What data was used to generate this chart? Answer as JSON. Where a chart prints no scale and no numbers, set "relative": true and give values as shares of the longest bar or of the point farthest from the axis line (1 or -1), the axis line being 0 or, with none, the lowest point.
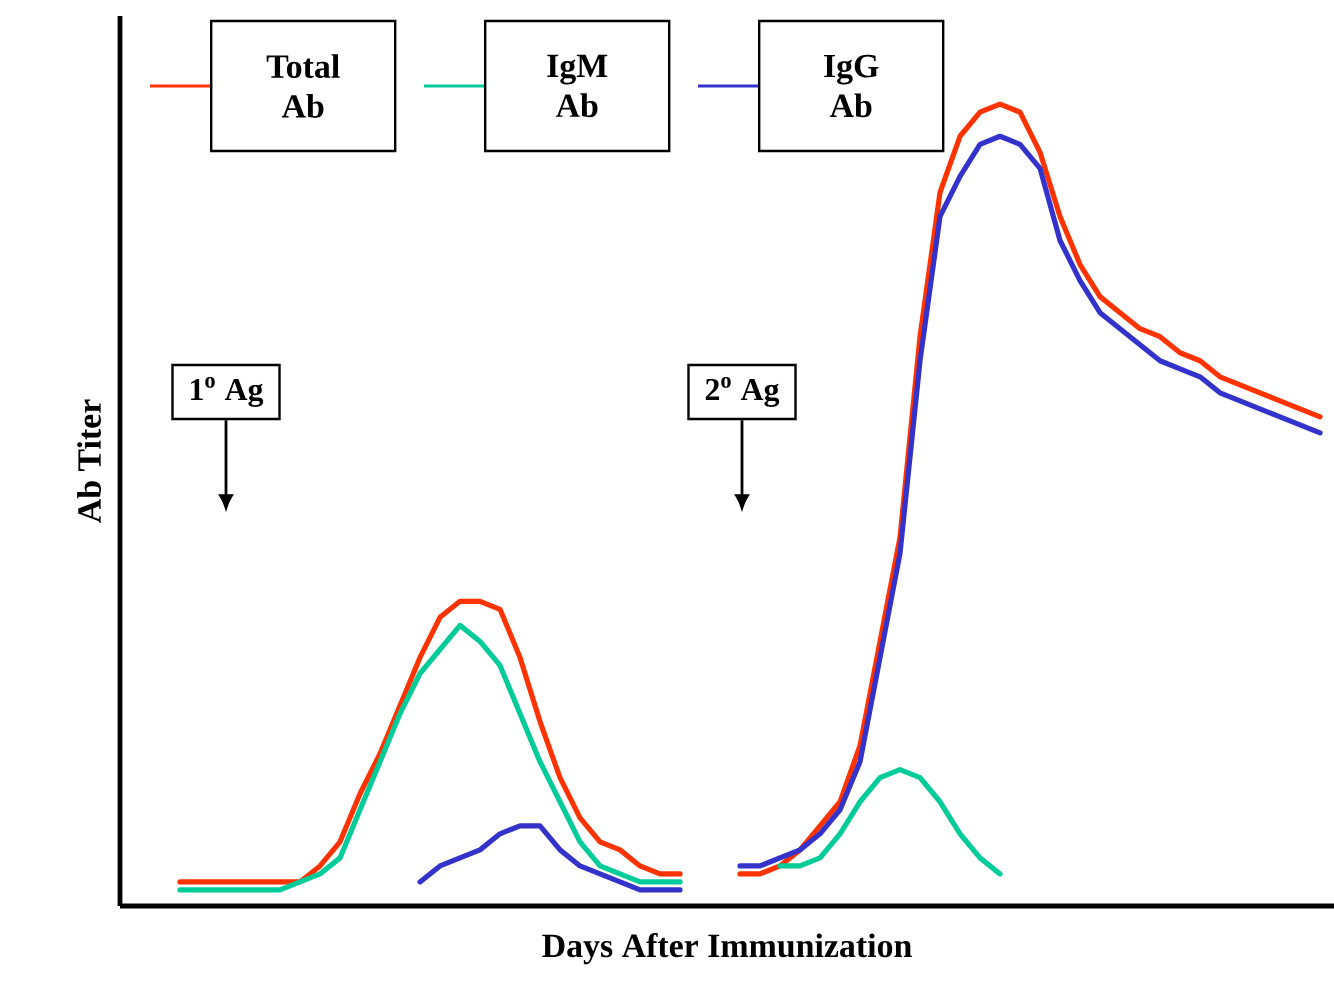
{
  "chart_data": {
    "type": "line",
    "xlabel": "Days After Immunization",
    "ylabel": "Ab Titer",
    "relative": true,
    "legend": "top left",
    "marker": "none",
    "line_style": "solid",
    "grid": false,
    "annotations": [
      "1$^{o}$ Ag",
      "2$^{o}$ Ag"
    ],
    "categories": [
      null,
      null,
      null,
      null,
      null,
      null,
      null,
      null,
      null,
      null,
      null,
      null,
      null,
      null,
      null,
      null,
      null,
      null,
      null,
      null,
      null,
      null,
      null,
      null,
      null,
      null,
      null,
      null,
      null,
      null,
      null,
      null,
      null,
      null,
      null,
      null,
      null,
      null,
      null,
      null,
      null,
      null,
      null,
      null,
      null,
      null,
      null,
      null,
      null,
      null,
      null,
      null,
      null,
      null,
      null,
      null,
      null,
      null
    ],
    "series": [
      {
        "name": "Total Ab",
        "color": "#ff3300",
        "values": [
          0.03,
          0.03,
          0.03,
          0.03,
          0.03,
          0.03,
          0.03,
          0.05,
          0.08,
          0.14,
          0.19,
          0.25,
          0.31,
          0.36,
          0.38,
          0.38,
          0.37,
          0.31,
          0.23,
          0.16,
          0.11,
          0.08,
          0.07,
          0.05,
          0.04,
          0.04,
          null,
          null,
          null,
          null,
          null,
          null,
          null,
          null,
          null,
          null,
          null,
          null,
          null,
          null,
          null,
          null,
          null,
          null,
          null,
          null,
          null,
          null,
          null,
          null,
          null,
          null,
          null,
          null,
          null,
          null,
          null,
          null
        ]
      },
      {
        "name": "IgM Ab",
        "color": "#00cc99",
        "values": [
          0.02,
          0.02,
          0.02,
          0.02,
          0.02,
          0.02,
          0.03,
          0.04,
          0.06,
          0.12,
          0.18,
          0.24,
          0.29,
          0.32,
          0.35,
          0.33,
          0.3,
          0.24,
          0.18,
          0.13,
          0.08,
          0.05,
          0.04,
          0.03,
          0.03,
          0.03,
          null,
          null,
          null,
          null,
          null,
          null,
          null,
          null,
          null,
          null,
          null,
          null,
          null,
          null,
          null,
          null,
          null,
          null,
          null,
          null,
          null,
          null,
          null,
          null,
          null,
          null,
          null,
          null,
          null,
          null,
          null,
          null
        ]
      },
      {
        "name": "IgG Ab",
        "color": "#3333cc",
        "values": [
          null,
          null,
          null,
          null,
          null,
          null,
          null,
          null,
          null,
          null,
          null,
          null,
          0.03,
          0.05,
          0.06,
          0.07,
          0.09,
          0.1,
          0.1,
          0.07,
          0.05,
          0.04,
          0.03,
          0.02,
          0.02,
          0.02,
          null,
          null,
          null,
          null,
          null,
          null,
          null,
          null,
          null,
          null,
          null,
          null,
          null,
          null,
          null,
          null,
          null,
          null,
          null,
          null,
          null,
          null,
          null,
          null,
          null,
          null,
          null,
          null,
          null,
          null,
          null,
          null
        ]
      },
      {
        "color": "#ff3300",
        "values": [
          null,
          null,
          null,
          null,
          null,
          null,
          null,
          null,
          null,
          null,
          null,
          null,
          null,
          null,
          null,
          null,
          null,
          null,
          null,
          null,
          null,
          null,
          null,
          null,
          null,
          null,
          null,
          null,
          0.04,
          0.04,
          0.05,
          0.07,
          0.1,
          0.13,
          0.2,
          0.33,
          0.46,
          0.71,
          0.89,
          0.96,
          0.99,
          1.0,
          0.99,
          0.94,
          0.86,
          0.8,
          0.76,
          0.74,
          0.72,
          0.71,
          0.69,
          0.68,
          0.66,
          0.65,
          0.64,
          0.63,
          0.62,
          0.61
        ]
      },
      {
        "color": "#00cc99",
        "values": [
          null,
          null,
          null,
          null,
          null,
          null,
          null,
          null,
          null,
          null,
          null,
          null,
          null,
          null,
          null,
          null,
          null,
          null,
          null,
          null,
          null,
          null,
          null,
          null,
          null,
          null,
          null,
          null,
          null,
          null,
          0.05,
          0.05,
          0.06,
          0.09,
          0.13,
          0.16,
          0.17,
          0.16,
          0.13,
          0.09,
          0.06,
          0.04,
          null,
          null,
          null,
          null,
          null,
          null,
          null,
          null,
          null,
          null,
          null,
          null,
          null,
          null,
          null,
          null
        ]
      },
      {
        "color": "#3333cc",
        "values": [
          null,
          null,
          null,
          null,
          null,
          null,
          null,
          null,
          null,
          null,
          null,
          null,
          null,
          null,
          null,
          null,
          null,
          null,
          null,
          null,
          null,
          null,
          null,
          null,
          null,
          null,
          null,
          null,
          0.05,
          0.05,
          0.06,
          0.07,
          0.09,
          0.12,
          0.18,
          0.31,
          0.44,
          0.68,
          0.86,
          0.91,
          0.95,
          0.96,
          0.95,
          0.92,
          0.83,
          0.78,
          0.74,
          0.72,
          0.7,
          0.68,
          0.67,
          0.66,
          0.64,
          0.63,
          0.62,
          0.61,
          0.6,
          0.59
        ]
      }
    ]
  }
}
